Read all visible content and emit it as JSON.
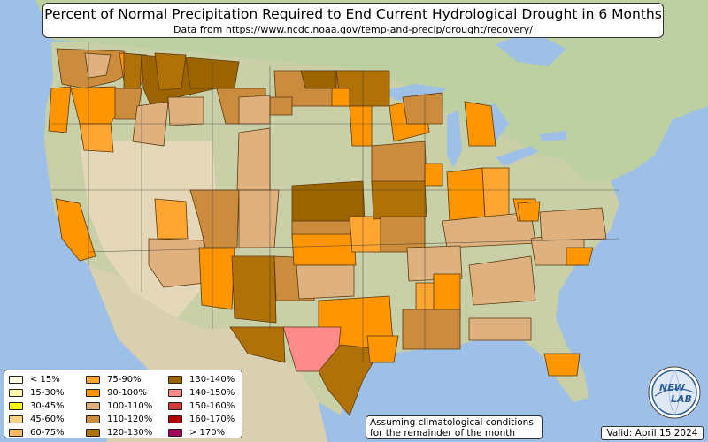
{
  "header": {
    "title": "Percent of Normal Precipitation Required to End Current Hydrological Drought in 6 Months",
    "subtitle": "Data from https://www.ncdc.noaa.gov/temp-and-precip/drought/recovery/"
  },
  "legend": {
    "items": [
      {
        "label": "< 15%",
        "color": "#fffde6"
      },
      {
        "label": "15-30%",
        "color": "#fff6a8"
      },
      {
        "label": "30-45%",
        "color": "#ffff00"
      },
      {
        "label": "45-60%",
        "color": "#ffd27f"
      },
      {
        "label": "60-75%",
        "color": "#fcb65e"
      },
      {
        "label": "75-90%",
        "color": "#ffa531"
      },
      {
        "label": "90-100%",
        "color": "#ff9500"
      },
      {
        "label": "100-110%",
        "color": "#deb17e"
      },
      {
        "label": "110-120%",
        "color": "#cc8c3d"
      },
      {
        "label": "120-130%",
        "color": "#b07108"
      },
      {
        "label": "130-140%",
        "color": "#9c6400"
      },
      {
        "label": "140-150%",
        "color": "#ff8a8a"
      },
      {
        "label": "150-160%",
        "color": "#d43a3a"
      },
      {
        "label": "160-170%",
        "color": "#b00000"
      },
      {
        "label": "> 170%",
        "color": "#a0005a"
      }
    ]
  },
  "note": {
    "line1": "Assuming climatological conditions",
    "line2": "for the remainder of the month"
  },
  "valid": "Valid: April 15 2024",
  "logo": {
    "text_top": "NEW",
    "text_bottom": "LAB",
    "icon": "newlab-globe-logo"
  },
  "colors": {
    "ocean": "#9fc0e6",
    "land": "#c6d3a8",
    "desert": "#e7d9b9"
  }
}
